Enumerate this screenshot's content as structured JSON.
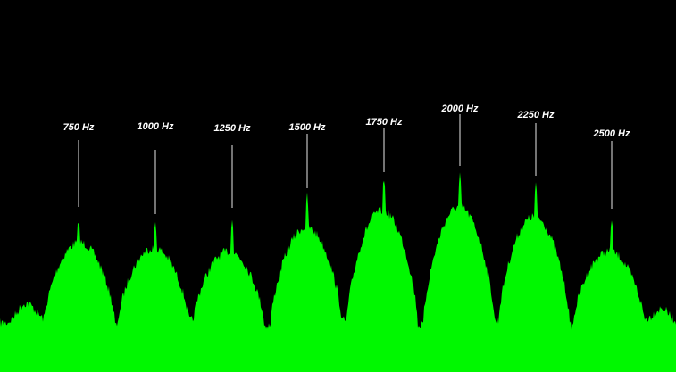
{
  "peak_labels": [
    "750 Hz",
    "1000 Hz",
    "1250 Hz",
    "1500 Hz",
    "1750 Hz",
    "2000 Hz",
    "2250 Hz",
    "2500 Hz"
  ]
}
